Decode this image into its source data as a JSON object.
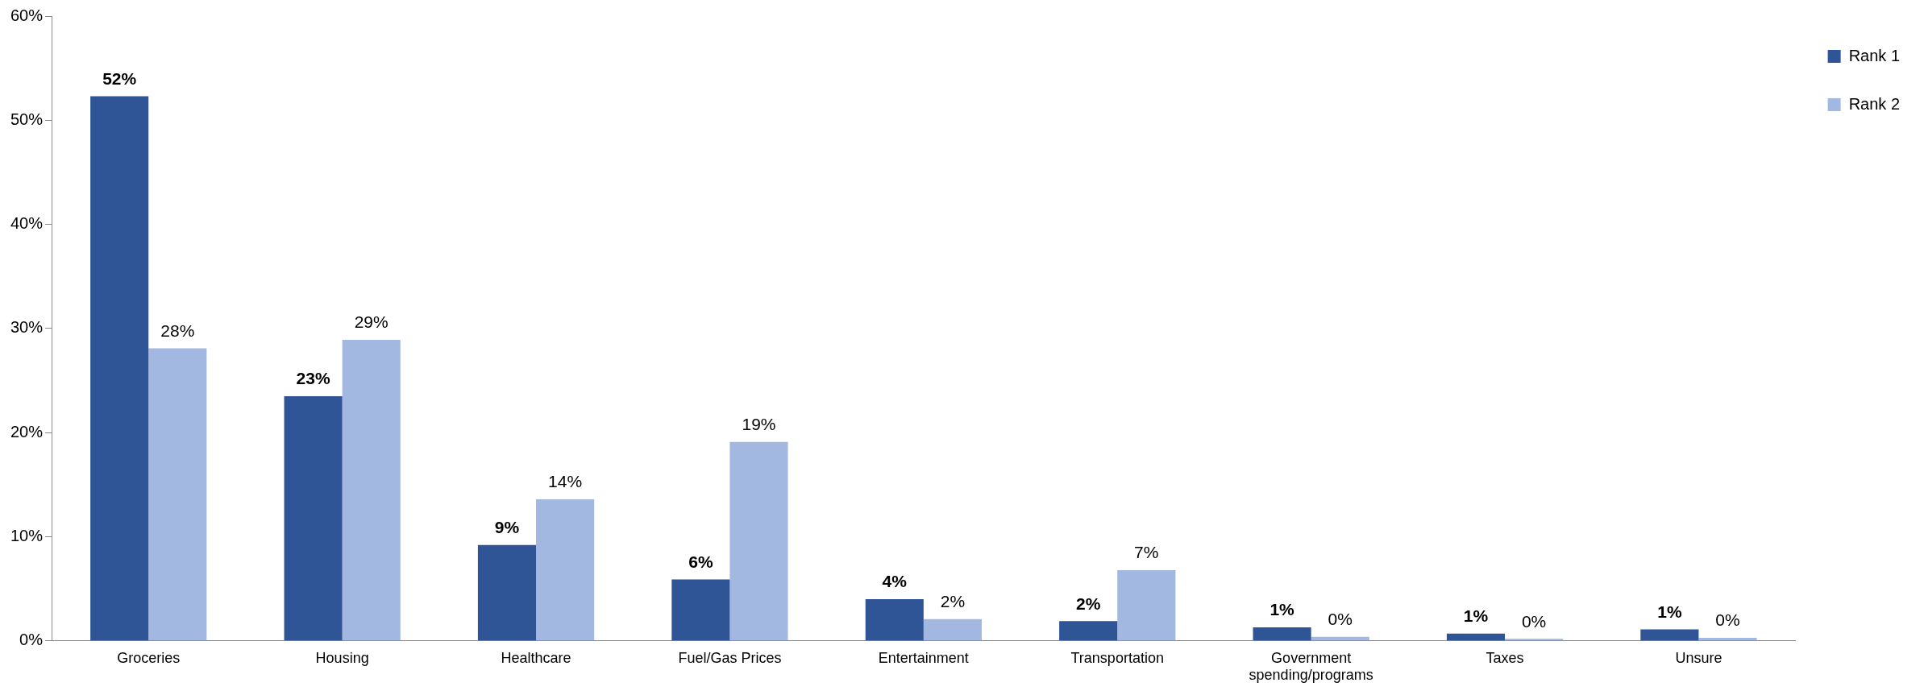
{
  "chart_data": {
    "type": "bar",
    "categories": [
      "Groceries",
      "Housing",
      "Healthcare",
      "Fuel/Gas Prices",
      "Entertainment",
      "Transportation",
      "Government spending/programs",
      "Taxes",
      "Unsure"
    ],
    "series": [
      {
        "name": "Rank 1",
        "color": "#2f5597",
        "values": [
          52.3,
          23.5,
          9.2,
          5.9,
          4.0,
          1.9,
          1.3,
          0.7,
          1.1
        ],
        "value_labels": [
          "52%",
          "23%",
          "9%",
          "6%",
          "4%",
          "2%",
          "1%",
          "1%",
          "1%"
        ]
      },
      {
        "name": "Rank 2",
        "color": "#a2b8e0",
        "values": [
          28.1,
          28.9,
          13.6,
          19.1,
          2.1,
          6.8,
          0.4,
          0.2,
          0.3
        ],
        "value_labels": [
          "28%",
          "29%",
          "14%",
          "19%",
          "2%",
          "7%",
          "0%",
          "0%",
          "0%"
        ]
      }
    ],
    "ylim": [
      0,
      60
    ],
    "yticks": [
      {
        "value": 0,
        "label": "0%"
      },
      {
        "value": 10,
        "label": "10%"
      },
      {
        "value": 20,
        "label": "20%"
      },
      {
        "value": 30,
        "label": "30%"
      },
      {
        "value": 40,
        "label": "40%"
      },
      {
        "value": 50,
        "label": "50%"
      },
      {
        "value": 60,
        "label": "60%"
      }
    ],
    "grid": false,
    "legend": "top right"
  }
}
